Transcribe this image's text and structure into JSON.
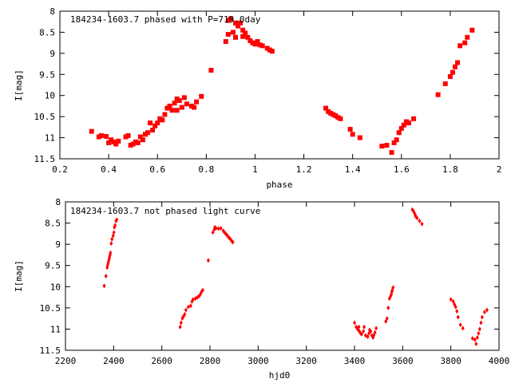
{
  "chart_data": [
    {
      "type": "scatter",
      "title": "184234-1603.7 phased with P=719.0day",
      "xlabel": "phase",
      "ylabel": "I[mag]",
      "xlim": [
        0.2,
        2
      ],
      "ylim": [
        8,
        11.5
      ],
      "y_inverted": true,
      "xticks": [
        "0.2",
        "0.4",
        "0.6",
        "0.8",
        "1",
        "1.2",
        "1.4",
        "1.6",
        "1.8",
        "2"
      ],
      "yticks": [
        "8",
        "8.5",
        "9",
        "9.5",
        "10",
        "10.5",
        "11",
        "11.5"
      ],
      "marker": "filled-square",
      "color": "#ff0000",
      "grid": false,
      "series": [
        {
          "x": [
            0.33,
            0.36,
            0.37,
            0.39,
            0.4,
            0.41,
            0.42,
            0.43,
            0.44,
            0.47,
            0.48,
            0.49,
            0.5,
            0.51,
            0.52,
            0.53,
            0.54,
            0.55,
            0.56,
            0.57,
            0.58,
            0.59,
            0.6,
            0.61,
            0.62,
            0.63,
            0.64,
            0.65,
            0.66,
            0.67,
            0.68,
            0.69,
            0.7,
            0.71,
            0.72,
            0.74,
            0.75,
            0.76,
            0.78,
            0.82,
            0.88,
            0.89,
            0.9,
            0.91,
            0.92,
            0.93,
            0.94,
            0.95,
            0.96,
            0.97,
            0.98,
            0.99,
            1.0,
            1.01,
            1.02,
            1.03,
            1.05,
            1.06,
            1.07,
            1.29,
            1.3,
            1.31,
            1.32,
            1.33,
            1.34,
            1.35,
            1.39,
            1.4,
            1.43,
            1.52,
            1.54,
            1.56,
            1.57,
            1.58,
            1.59,
            1.6,
            1.61,
            1.62,
            1.63,
            1.65,
            1.75,
            1.78,
            1.8,
            1.81,
            1.82,
            1.83,
            1.84,
            1.86,
            1.87,
            1.89,
            0.89,
            0.92,
            0.95,
            0.68
          ],
          "y": [
            10.85,
            10.98,
            10.95,
            10.97,
            11.12,
            11.05,
            11.1,
            11.15,
            11.08,
            10.98,
            10.95,
            11.18,
            11.15,
            11.1,
            11.12,
            10.98,
            11.05,
            10.92,
            10.88,
            10.65,
            10.82,
            10.72,
            10.65,
            10.55,
            10.58,
            10.45,
            10.3,
            10.25,
            10.35,
            10.18,
            10.35,
            10.12,
            10.28,
            10.05,
            10.2,
            10.25,
            10.28,
            10.15,
            10.02,
            9.4,
            8.72,
            8.22,
            8.18,
            8.5,
            8.28,
            8.35,
            8.28,
            8.45,
            8.52,
            8.62,
            8.7,
            8.75,
            8.78,
            8.72,
            8.8,
            8.82,
            8.88,
            8.92,
            8.95,
            10.3,
            10.38,
            10.42,
            10.45,
            10.48,
            10.52,
            10.55,
            10.8,
            10.92,
            11.0,
            11.2,
            11.18,
            11.35,
            11.12,
            11.05,
            10.88,
            10.78,
            10.7,
            10.62,
            10.65,
            10.55,
            9.98,
            9.72,
            9.55,
            9.45,
            9.32,
            9.22,
            8.82,
            8.75,
            8.62,
            8.45,
            8.55,
            8.62,
            8.6,
            10.08
          ]
        }
      ]
    },
    {
      "type": "scatter",
      "title": "184234-1603.7 not phased light curve",
      "xlabel": "hjd0",
      "ylabel": "I[mag]",
      "xlim": [
        2200,
        4000
      ],
      "ylim": [
        8,
        11.5
      ],
      "y_inverted": true,
      "xticks": [
        "2200",
        "2400",
        "2600",
        "2800",
        "3000",
        "3200",
        "3400",
        "3600",
        "3800",
        "4000"
      ],
      "yticks": [
        "8",
        "8.5",
        "9",
        "9.5",
        "10",
        "10.5",
        "11",
        "11.5"
      ],
      "marker": "filled-diamond",
      "color": "#ff0000",
      "grid": false,
      "series": [
        {
          "x": [
            2361,
            2368,
            2373,
            2375,
            2377,
            2379,
            2381,
            2383,
            2385,
            2387,
            2390,
            2393,
            2398,
            2401,
            2403,
            2406,
            2410,
            2413,
            2676,
            2680,
            2685,
            2690,
            2695,
            2700,
            2710,
            2720,
            2725,
            2730,
            2740,
            2748,
            2755,
            2760,
            2765,
            2770,
            2793,
            2812,
            2818,
            2820,
            2825,
            2835,
            2845,
            2855,
            2860,
            2865,
            2870,
            2875,
            2880,
            2885,
            2890,
            2895,
            3400,
            3407,
            3413,
            3418,
            3420,
            3425,
            3430,
            3437,
            3440,
            3446,
            3455,
            3460,
            3463,
            3467,
            3472,
            3477,
            3480,
            3485,
            3490,
            3530,
            3535,
            3540,
            3545,
            3550,
            3553,
            3555,
            3557,
            3560,
            3640,
            3645,
            3650,
            3653,
            3655,
            3660,
            3670,
            3680,
            3800,
            3810,
            3815,
            3820,
            3825,
            3830,
            3840,
            3850,
            3890,
            3900,
            3905,
            3910,
            3915,
            3920,
            3925,
            3930,
            3940,
            3950
          ],
          "y": [
            9.98,
            9.75,
            9.55,
            9.5,
            9.45,
            9.4,
            9.35,
            9.3,
            9.25,
            9.2,
            8.98,
            8.88,
            8.8,
            8.72,
            8.6,
            8.55,
            8.45,
            8.42,
            10.95,
            10.85,
            10.75,
            10.7,
            10.65,
            10.55,
            10.48,
            10.45,
            10.35,
            10.3,
            10.28,
            10.25,
            10.22,
            10.18,
            10.12,
            10.08,
            9.38,
            8.72,
            8.65,
            8.6,
            8.62,
            8.63,
            8.62,
            8.68,
            8.72,
            8.75,
            8.78,
            8.82,
            8.85,
            8.88,
            8.92,
            8.95,
            10.85,
            10.95,
            11.0,
            10.95,
            11.05,
            11.1,
            11.12,
            11.05,
            10.95,
            11.15,
            11.18,
            11.1,
            11.02,
            11.05,
            11.15,
            11.2,
            11.15,
            11.08,
            10.98,
            10.82,
            10.75,
            10.5,
            10.28,
            10.22,
            10.18,
            10.12,
            10.08,
            10.02,
            8.18,
            8.22,
            8.28,
            8.32,
            8.35,
            8.38,
            8.45,
            8.52,
            10.3,
            10.35,
            10.42,
            10.48,
            10.58,
            10.72,
            10.9,
            10.98,
            11.22,
            11.25,
            11.35,
            11.2,
            11.1,
            11.0,
            10.85,
            10.72,
            10.6,
            10.55
          ]
        }
      ]
    }
  ]
}
